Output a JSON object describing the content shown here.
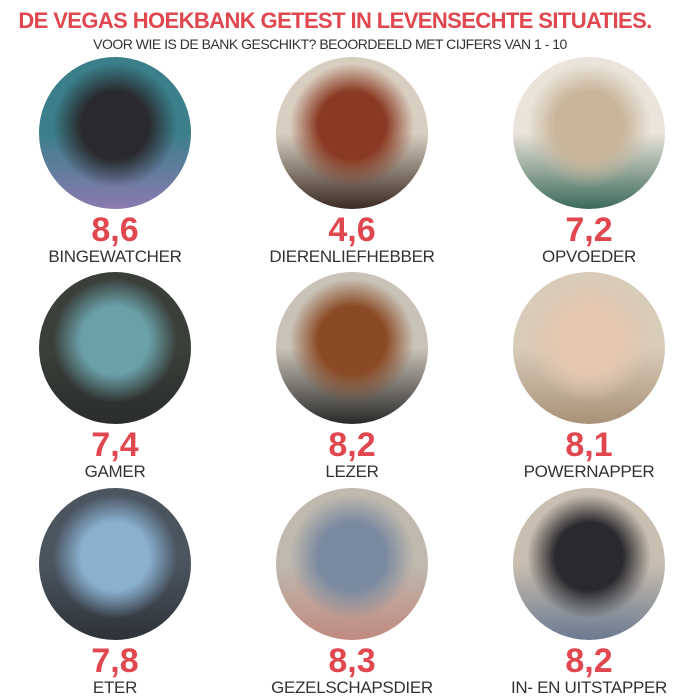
{
  "header": {
    "title": "DE VEGAS HOEKBANK GETEST IN LEVENSECHTE SITUATIES.",
    "subtitle": "VOOR WIE IS DE BANK GESCHIKT? BEOORDEELD MET CIJFERS VAN 1 - 10"
  },
  "accent_color": "#e0474f",
  "items": [
    {
      "score": "8,6",
      "label": "BINGEWATCHER",
      "photo_colors": [
        "#3a7f8a",
        "#2a2a2e",
        "#8a7ab0"
      ]
    },
    {
      "score": "4,6",
      "label": "DIERENLIEFHEBBER",
      "photo_colors": [
        "#d9cfc0",
        "#8a3a22",
        "#3a2a22"
      ]
    },
    {
      "score": "7,2",
      "label": "OPVOEDER",
      "photo_colors": [
        "#eae4da",
        "#c9b59a",
        "#3a6a5a"
      ]
    },
    {
      "score": "7,4",
      "label": "GAMER",
      "photo_colors": [
        "#3a3f3a",
        "#6aa0a8",
        "#2a2d2a"
      ]
    },
    {
      "score": "8,2",
      "label": "LEZER",
      "photo_colors": [
        "#c9c2b6",
        "#8a4a25",
        "#2a2a2a"
      ]
    },
    {
      "score": "8,1",
      "label": "POWERNAPPER",
      "photo_colors": [
        "#d8cbb8",
        "#e4c7b0",
        "#a89278"
      ]
    },
    {
      "score": "7,8",
      "label": "ETER",
      "photo_colors": [
        "#4a5560",
        "#8ab0d0",
        "#2e3238"
      ]
    },
    {
      "score": "8,3",
      "label": "GEZELSCHAPSDIER",
      "photo_colors": [
        "#bfb9ae",
        "#7a8aa0",
        "#c08a80"
      ]
    },
    {
      "score": "8,2",
      "label": "IN- EN UITSTAPPER",
      "photo_colors": [
        "#c9beb0",
        "#2a2a2e",
        "#6a7a90"
      ]
    }
  ]
}
